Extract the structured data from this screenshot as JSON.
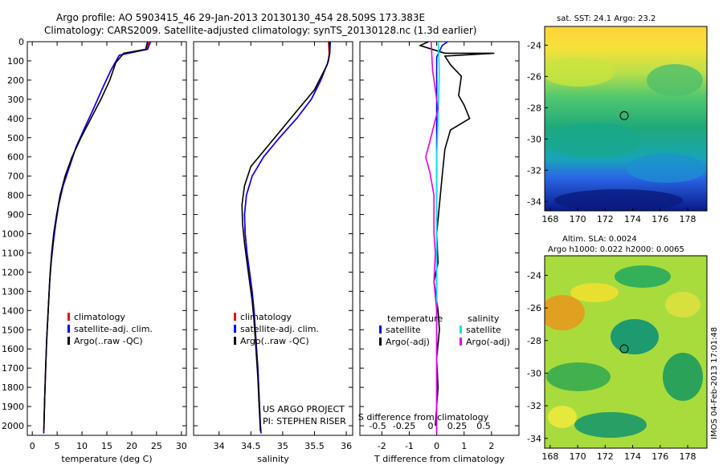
{
  "header": {
    "line1": "Argo profile: AO 5903415_46 29-Jan-2013 20130130_454 28.509S 173.383E",
    "line2": "Climatology: CARS2009. Satellite-adjusted climatology: synTS_20130128.nc (1.3d earlier)"
  },
  "colors": {
    "climatology": "#ff0000",
    "satellite": "#0000ff",
    "argo": "#000000",
    "cyan": "#00e5ee",
    "magenta": "#e600e6"
  },
  "chart_data": [
    {
      "type": "line",
      "panel": "temperature",
      "xlabel": "temperature (deg C)",
      "ylabel": "",
      "xlim": [
        -1,
        31
      ],
      "ylim": [
        2050,
        0
      ],
      "xticks": [
        0,
        5,
        10,
        15,
        20,
        25,
        30
      ],
      "yticks": [
        0,
        100,
        200,
        300,
        400,
        500,
        600,
        700,
        800,
        900,
        1000,
        1100,
        1200,
        1300,
        1400,
        1500,
        1600,
        1700,
        1800,
        1900,
        2000
      ],
      "legend": [
        "climatology",
        "satellite-adj. clim.",
        "Argo(..raw -QC)"
      ],
      "series": [
        {
          "name": "climatology",
          "color": "#ff0000",
          "points": [
            [
              23.5,
              0
            ],
            [
              23,
              40
            ],
            [
              17.5,
              70
            ],
            [
              15.8,
              150
            ],
            [
              14,
              250
            ],
            [
              12.3,
              350
            ],
            [
              10.5,
              450
            ],
            [
              8.8,
              550
            ],
            [
              7.5,
              650
            ],
            [
              6.2,
              750
            ],
            [
              5.3,
              850
            ],
            [
              4.7,
              950
            ],
            [
              4.2,
              1050
            ],
            [
              3.8,
              1150
            ],
            [
              3.5,
              1250
            ],
            [
              3.2,
              1400
            ],
            [
              2.9,
              1550
            ],
            [
              2.7,
              1700
            ],
            [
              2.5,
              1850
            ],
            [
              2.35,
              2000
            ],
            [
              2.3,
              2040
            ]
          ]
        },
        {
          "name": "satellite-adj. clim.",
          "color": "#0000ff",
          "points": [
            [
              23.8,
              0
            ],
            [
              23.2,
              40
            ],
            [
              17.5,
              70
            ],
            [
              15.8,
              150
            ],
            [
              14,
              250
            ],
            [
              12.3,
              350
            ],
            [
              10.5,
              450
            ],
            [
              8.8,
              550
            ],
            [
              7.5,
              650
            ],
            [
              6.2,
              750
            ],
            [
              5.3,
              850
            ],
            [
              4.7,
              950
            ],
            [
              4.2,
              1050
            ],
            [
              3.8,
              1150
            ],
            [
              3.5,
              1250
            ],
            [
              3.2,
              1400
            ],
            [
              2.9,
              1550
            ],
            [
              2.7,
              1700
            ],
            [
              2.5,
              1850
            ],
            [
              2.35,
              2000
            ],
            [
              2.3,
              2040
            ]
          ]
        },
        {
          "name": "Argo(..raw -QC)",
          "color": "#000000",
          "points": [
            [
              23.2,
              0
            ],
            [
              22.8,
              40
            ],
            [
              18.4,
              60
            ],
            [
              16.8,
              110
            ],
            [
              15.6,
              200
            ],
            [
              13.8,
              300
            ],
            [
              11.8,
              400
            ],
            [
              9.8,
              500
            ],
            [
              8,
              600
            ],
            [
              6.6,
              700
            ],
            [
              5.6,
              800
            ],
            [
              4.9,
              900
            ],
            [
              4.3,
              1000
            ],
            [
              3.9,
              1100
            ],
            [
              3.6,
              1200
            ],
            [
              3.3,
              1350
            ],
            [
              3,
              1500
            ],
            [
              2.75,
              1650
            ],
            [
              2.55,
              1800
            ],
            [
              2.4,
              1950
            ],
            [
              2.35,
              2020
            ]
          ]
        }
      ]
    },
    {
      "type": "line",
      "panel": "salinity",
      "xlabel": "salinity",
      "ylabel": "",
      "xlim": [
        33.6,
        36.1
      ],
      "ylim": [
        2050,
        0
      ],
      "xticks": [
        34,
        34.5,
        35,
        35.5,
        36
      ],
      "legend": [
        "climatology",
        "satellite-adj. clim.",
        "Argo(..raw -QC)"
      ],
      "annotations": [
        "US ARGO PROJECT",
        "PI: STEPHEN RISER"
      ],
      "series": [
        {
          "name": "climatology",
          "color": "#ff0000",
          "points": [
            [
              35.72,
              0
            ],
            [
              35.73,
              60
            ],
            [
              35.72,
              100
            ],
            [
              35.6,
              200
            ],
            [
              35.45,
              300
            ],
            [
              35.22,
              400
            ],
            [
              34.95,
              500
            ],
            [
              34.7,
              600
            ],
            [
              34.52,
              700
            ],
            [
              34.43,
              800
            ],
            [
              34.4,
              900
            ],
            [
              34.41,
              1000
            ],
            [
              34.44,
              1100
            ],
            [
              34.48,
              1200
            ],
            [
              34.52,
              1300
            ],
            [
              34.55,
              1400
            ],
            [
              34.58,
              1550
            ],
            [
              34.61,
              1700
            ],
            [
              34.63,
              1850
            ],
            [
              34.65,
              2000
            ],
            [
              34.66,
              2040
            ]
          ]
        },
        {
          "name": "satellite-adj. clim.",
          "color": "#0000ff",
          "points": [
            [
              35.75,
              0
            ],
            [
              35.74,
              60
            ],
            [
              35.72,
              100
            ],
            [
              35.6,
              200
            ],
            [
              35.45,
              300
            ],
            [
              35.22,
              400
            ],
            [
              34.95,
              500
            ],
            [
              34.7,
              600
            ],
            [
              34.52,
              700
            ],
            [
              34.43,
              800
            ],
            [
              34.4,
              900
            ],
            [
              34.41,
              1000
            ],
            [
              34.44,
              1100
            ],
            [
              34.48,
              1200
            ],
            [
              34.52,
              1300
            ],
            [
              34.55,
              1400
            ],
            [
              34.58,
              1550
            ],
            [
              34.61,
              1700
            ],
            [
              34.63,
              1850
            ],
            [
              34.65,
              2000
            ],
            [
              34.66,
              2040
            ]
          ]
        },
        {
          "name": "Argo(..raw -QC)",
          "color": "#000000",
          "points": [
            [
              35.73,
              0
            ],
            [
              35.74,
              60
            ],
            [
              35.7,
              120
            ],
            [
              35.5,
              250
            ],
            [
              35.25,
              350
            ],
            [
              35,
              450
            ],
            [
              34.75,
              550
            ],
            [
              34.5,
              650
            ],
            [
              34.4,
              750
            ],
            [
              34.36,
              850
            ],
            [
              34.37,
              950
            ],
            [
              34.4,
              1050
            ],
            [
              34.44,
              1150
            ],
            [
              34.48,
              1250
            ],
            [
              34.52,
              1350
            ],
            [
              34.55,
              1450
            ],
            [
              34.58,
              1600
            ],
            [
              34.61,
              1750
            ],
            [
              34.63,
              1900
            ],
            [
              34.65,
              2030
            ]
          ]
        }
      ]
    },
    {
      "type": "line",
      "panel": "difference",
      "xlabel": "T difference from climatology",
      "top_axis_label": "S difference from climatology",
      "xlim": [
        -2.8,
        3.0
      ],
      "ylim": [
        2050,
        0
      ],
      "xticks": [
        -2,
        -1,
        0,
        1,
        2
      ],
      "sticks": [
        "-0.5",
        "-0.25",
        "0",
        "0.25",
        "0.5"
      ],
      "legend_titles": [
        "temperature",
        "salinity"
      ],
      "legend": [
        "satellite",
        "Argo(-adj)",
        "satellite",
        "Argo(-adj)"
      ],
      "series": [
        {
          "name": "Argo(-adj)",
          "color": "#000000",
          "points": [
            [
              -0.3,
              0
            ],
            [
              -0.6,
              20
            ],
            [
              0.3,
              60
            ],
            [
              2.1,
              60
            ],
            [
              0.3,
              75
            ],
            [
              0.5,
              120
            ],
            [
              0.9,
              180
            ],
            [
              0.8,
              280
            ],
            [
              1.0,
              330
            ],
            [
              1.2,
              400
            ],
            [
              0.5,
              460
            ],
            [
              0.3,
              560
            ],
            [
              0.2,
              700
            ],
            [
              0.1,
              850
            ],
            [
              0.0,
              1000
            ],
            [
              0.05,
              1150
            ],
            [
              -0.1,
              1250
            ],
            [
              0.05,
              1400
            ],
            [
              0.1,
              1500
            ],
            [
              0.0,
              1650
            ],
            [
              0.05,
              1800
            ],
            [
              -0.05,
              2000
            ]
          ]
        },
        {
          "name": "satellite",
          "color": "#0000ff",
          "points": [
            [
              0.4,
              0
            ],
            [
              0.2,
              20
            ],
            [
              0,
              80
            ],
            [
              0,
              2040
            ]
          ]
        },
        {
          "name": "satellite",
          "color": "#00e5ee",
          "points": [
            [
              0.05,
              0
            ],
            [
              0.1,
              150
            ],
            [
              0.05,
              400
            ],
            [
              0,
              600
            ],
            [
              0,
              2040
            ]
          ]
        },
        {
          "name": "Argo(-adj)",
          "color": "#e600e6",
          "points": [
            [
              -0.2,
              0
            ],
            [
              -0.15,
              150
            ],
            [
              0.05,
              350
            ],
            [
              -0.25,
              520
            ],
            [
              -0.4,
              600
            ],
            [
              -0.25,
              680
            ],
            [
              -0.1,
              800
            ],
            [
              -0.1,
              1000
            ],
            [
              -0.05,
              1100
            ],
            [
              -0.1,
              1250
            ],
            [
              0,
              1400
            ],
            [
              0,
              2040
            ]
          ]
        }
      ]
    },
    {
      "type": "heatmap",
      "panel": "sst",
      "title": "sat. SST: 24.1 Argo: 23.2",
      "xticks": [
        168,
        170,
        172,
        174,
        176,
        178
      ],
      "yticks": [
        -24,
        -26,
        -28,
        -30,
        -32,
        -34
      ],
      "xlim": [
        167.6,
        179.4
      ],
      "ylim": [
        -34.6,
        -22.8
      ],
      "marker": [
        173.383,
        -28.509
      ]
    },
    {
      "type": "heatmap",
      "panel": "sla",
      "title": "Altim. SLA: 0.0024",
      "subtitle": "Argo h1000: 0.022 h2000: 0.0065",
      "xticks": [
        168,
        170,
        172,
        174,
        176,
        178
      ],
      "yticks": [
        -24,
        -26,
        -28,
        -30,
        -32,
        -34
      ],
      "xlim": [
        167.6,
        179.4
      ],
      "ylim": [
        -34.6,
        -22.8
      ],
      "marker": [
        173.383,
        -28.509
      ]
    }
  ],
  "footer": {
    "stamp": "IMOS 04-Feb-2013 17:01:48"
  }
}
